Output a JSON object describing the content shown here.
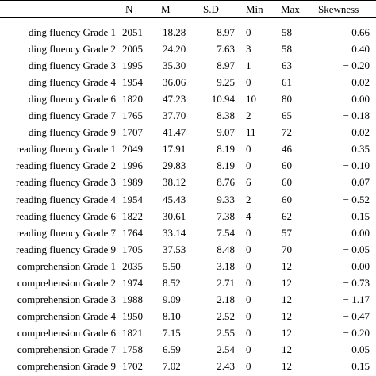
{
  "table": {
    "headers": {
      "label": "",
      "n": "N",
      "m": "M",
      "sd": "S.D",
      "min": "Min",
      "max": "Max",
      "skewness": "Skewness"
    },
    "rows": [
      {
        "label": "ding fluency Grade 1",
        "n": "2051",
        "m": "18.28",
        "sd": "8.97",
        "min": "0",
        "max": "58",
        "skewness": "0.66"
      },
      {
        "label": "ding fluency Grade 2",
        "n": "2005",
        "m": "24.20",
        "sd": "7.63",
        "min": "3",
        "max": "58",
        "skewness": "0.40"
      },
      {
        "label": "ding fluency Grade 3",
        "n": "1995",
        "m": "35.30",
        "sd": "8.97",
        "min": "1",
        "max": "63",
        "skewness": "− 0.20"
      },
      {
        "label": "ding fluency Grade 4",
        "n": "1954",
        "m": "36.06",
        "sd": "9.25",
        "min": "0",
        "max": "61",
        "skewness": "− 0.02"
      },
      {
        "label": "ding fluency Grade 6",
        "n": "1820",
        "m": "47.23",
        "sd": "10.94",
        "min": "10",
        "max": "80",
        "skewness": "0.00"
      },
      {
        "label": "ding fluency Grade 7",
        "n": "1765",
        "m": "37.70",
        "sd": "8.38",
        "min": "2",
        "max": "65",
        "skewness": "− 0.18"
      },
      {
        "label": "ding fluency Grade 9",
        "n": "1707",
        "m": "41.47",
        "sd": "9.07",
        "min": "11",
        "max": "72",
        "skewness": "− 0.02"
      },
      {
        "label": "reading fluency Grade 1",
        "n": "2049",
        "m": "17.91",
        "sd": "8.19",
        "min": "0",
        "max": "46",
        "skewness": "0.35"
      },
      {
        "label": "reading fluency Grade 2",
        "n": "1996",
        "m": "29.83",
        "sd": "8.19",
        "min": "0",
        "max": "60",
        "skewness": "− 0.10"
      },
      {
        "label": "reading fluency Grade 3",
        "n": "1989",
        "m": "38.12",
        "sd": "8.76",
        "min": "6",
        "max": "60",
        "skewness": "− 0.07"
      },
      {
        "label": "reading fluency Grade 4",
        "n": "1954",
        "m": "45.43",
        "sd": "9.33",
        "min": "2",
        "max": "60",
        "skewness": "− 0.52"
      },
      {
        "label": "reading fluency Grade 6",
        "n": "1822",
        "m": "30.61",
        "sd": "7.38",
        "min": "4",
        "max": "62",
        "skewness": "0.15"
      },
      {
        "label": "reading fluency Grade 7",
        "n": "1764",
        "m": "33.14",
        "sd": "7.54",
        "min": "0",
        "max": "57",
        "skewness": "0.00"
      },
      {
        "label": "reading fluency Grade 9",
        "n": "1705",
        "m": "37.53",
        "sd": "8.48",
        "min": "0",
        "max": "70",
        "skewness": "− 0.05"
      },
      {
        "label": "comprehension Grade 1",
        "n": "2035",
        "m": "5.50",
        "sd": "3.18",
        "min": "0",
        "max": "12",
        "skewness": "0.00"
      },
      {
        "label": "comprehension Grade 2",
        "n": "1974",
        "m": "8.52",
        "sd": "2.71",
        "min": "0",
        "max": "12",
        "skewness": "− 0.73"
      },
      {
        "label": "comprehension Grade 3",
        "n": "1988",
        "m": "9.09",
        "sd": "2.18",
        "min": "0",
        "max": "12",
        "skewness": "− 1.17"
      },
      {
        "label": "comprehension Grade 4",
        "n": "1950",
        "m": "8.10",
        "sd": "2.52",
        "min": "0",
        "max": "12",
        "skewness": "− 0.47"
      },
      {
        "label": "comprehension Grade 6",
        "n": "1821",
        "m": "7.15",
        "sd": "2.55",
        "min": "0",
        "max": "12",
        "skewness": "− 0.20"
      },
      {
        "label": "comprehension Grade 7",
        "n": "1758",
        "m": "6.59",
        "sd": "2.54",
        "min": "0",
        "max": "12",
        "skewness": "0.05"
      },
      {
        "label": "comprehension Grade 9",
        "n": "1702",
        "m": "7.02",
        "sd": "2.43",
        "min": "0",
        "max": "12",
        "skewness": "− 0.15"
      }
    ]
  }
}
